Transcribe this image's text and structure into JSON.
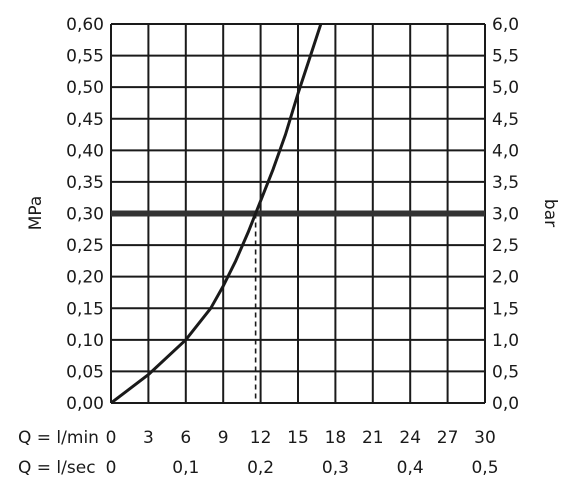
{
  "chart_data": {
    "type": "line",
    "title": "",
    "y_left": {
      "label": "MPa",
      "ylim": [
        0,
        0.6
      ],
      "ticks": [
        0,
        0.05,
        0.1,
        0.15,
        0.2,
        0.25,
        0.3,
        0.35,
        0.4,
        0.45,
        0.5,
        0.55,
        0.6
      ],
      "tick_labels": [
        "0,00",
        "0,05",
        "0,10",
        "0,15",
        "0,20",
        "0,25",
        "0,30",
        "0,35",
        "0,40",
        "0,45",
        "0,50",
        "0,55",
        "0,60"
      ]
    },
    "y_right": {
      "label": "bar",
      "ylim": [
        0,
        6
      ],
      "ticks": [
        0,
        0.5,
        1,
        1.5,
        2,
        2.5,
        3,
        3.5,
        4,
        4.5,
        5,
        5.5,
        6
      ],
      "tick_labels": [
        "0,0",
        "0,5",
        "1,0",
        "1,5",
        "2,0",
        "2,5",
        "3,0",
        "3,5",
        "4,0",
        "4,5",
        "5,0",
        "5,5",
        "6,0"
      ]
    },
    "x_lmin": {
      "label": "Q = l/min",
      "xlim": [
        0,
        30
      ],
      "ticks": [
        0,
        3,
        6,
        9,
        12,
        15,
        18,
        21,
        24,
        27,
        30
      ],
      "tick_labels": [
        "0",
        "3",
        "6",
        "9",
        "12",
        "15",
        "18",
        "21",
        "24",
        "27",
        "30"
      ]
    },
    "x_lsec": {
      "label": "Q = l/sec",
      "ticks": [
        0,
        0.1,
        0.2,
        0.3,
        0.4,
        0.5
      ],
      "tick_labels": [
        "0",
        "0,1",
        "0,2",
        "0,3",
        "0,4",
        "0,5"
      ]
    },
    "grid": true,
    "series": [
      {
        "x": [
          0,
          3,
          6,
          8,
          9,
          10,
          11,
          12,
          13,
          14,
          15,
          16,
          17
        ],
        "y": [
          0,
          0.045,
          0.1,
          0.15,
          0.185,
          0.225,
          0.27,
          0.32,
          0.37,
          0.425,
          0.49,
          0.55,
          0.61
        ]
      }
    ],
    "reference_line": {
      "y": 0.3
    },
    "marker": {
      "x": 11.6,
      "y": 0.3
    }
  },
  "colors": {
    "grid": "#1a1a1a",
    "curve": "#1a1a1a",
    "reference": "#333333"
  }
}
